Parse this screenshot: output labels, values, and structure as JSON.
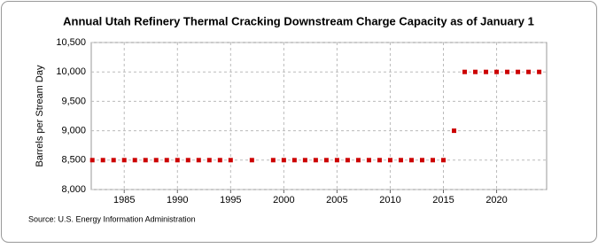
{
  "chart_data": {
    "type": "scatter",
    "title": "Annual Utah Refinery Thermal Cracking Downstream Charge Capacity as of January 1",
    "ylabel": "Barrels per Stream Day",
    "source": "Source: U.S. Energy Information Administration",
    "x": [
      1982,
      1983,
      1984,
      1985,
      1986,
      1987,
      1988,
      1989,
      1990,
      1991,
      1992,
      1993,
      1994,
      1995,
      1997,
      1999,
      2000,
      2001,
      2002,
      2003,
      2004,
      2005,
      2006,
      2007,
      2008,
      2009,
      2010,
      2011,
      2012,
      2013,
      2014,
      2015,
      2016,
      2017,
      2018,
      2019,
      2020,
      2021,
      2022,
      2023,
      2024
    ],
    "values": [
      8500,
      8500,
      8500,
      8500,
      8500,
      8500,
      8500,
      8500,
      8500,
      8500,
      8500,
      8500,
      8500,
      8500,
      8500,
      8500,
      8500,
      8500,
      8500,
      8500,
      8500,
      8500,
      8500,
      8500,
      8500,
      8500,
      8500,
      8500,
      8500,
      8500,
      8500,
      8500,
      9000,
      10000,
      10000,
      10000,
      10000,
      10000,
      10000,
      10000,
      10000
    ],
    "color": "#cc0000",
    "xlim": [
      1981.9,
      2024.7
    ],
    "xticks": [
      1985,
      1990,
      1995,
      2000,
      2005,
      2010,
      2015,
      2020
    ],
    "ylim": [
      8000,
      10500
    ],
    "yticks": [
      {
        "value": 8000,
        "label": "8,000"
      },
      {
        "value": 8500,
        "label": "8,500"
      },
      {
        "value": 9000,
        "label": "9,000"
      },
      {
        "value": 9500,
        "label": "9,500"
      },
      {
        "value": 10000,
        "label": "10,000"
      },
      {
        "value": 10500,
        "label": "10,500"
      }
    ],
    "grid": true
  }
}
